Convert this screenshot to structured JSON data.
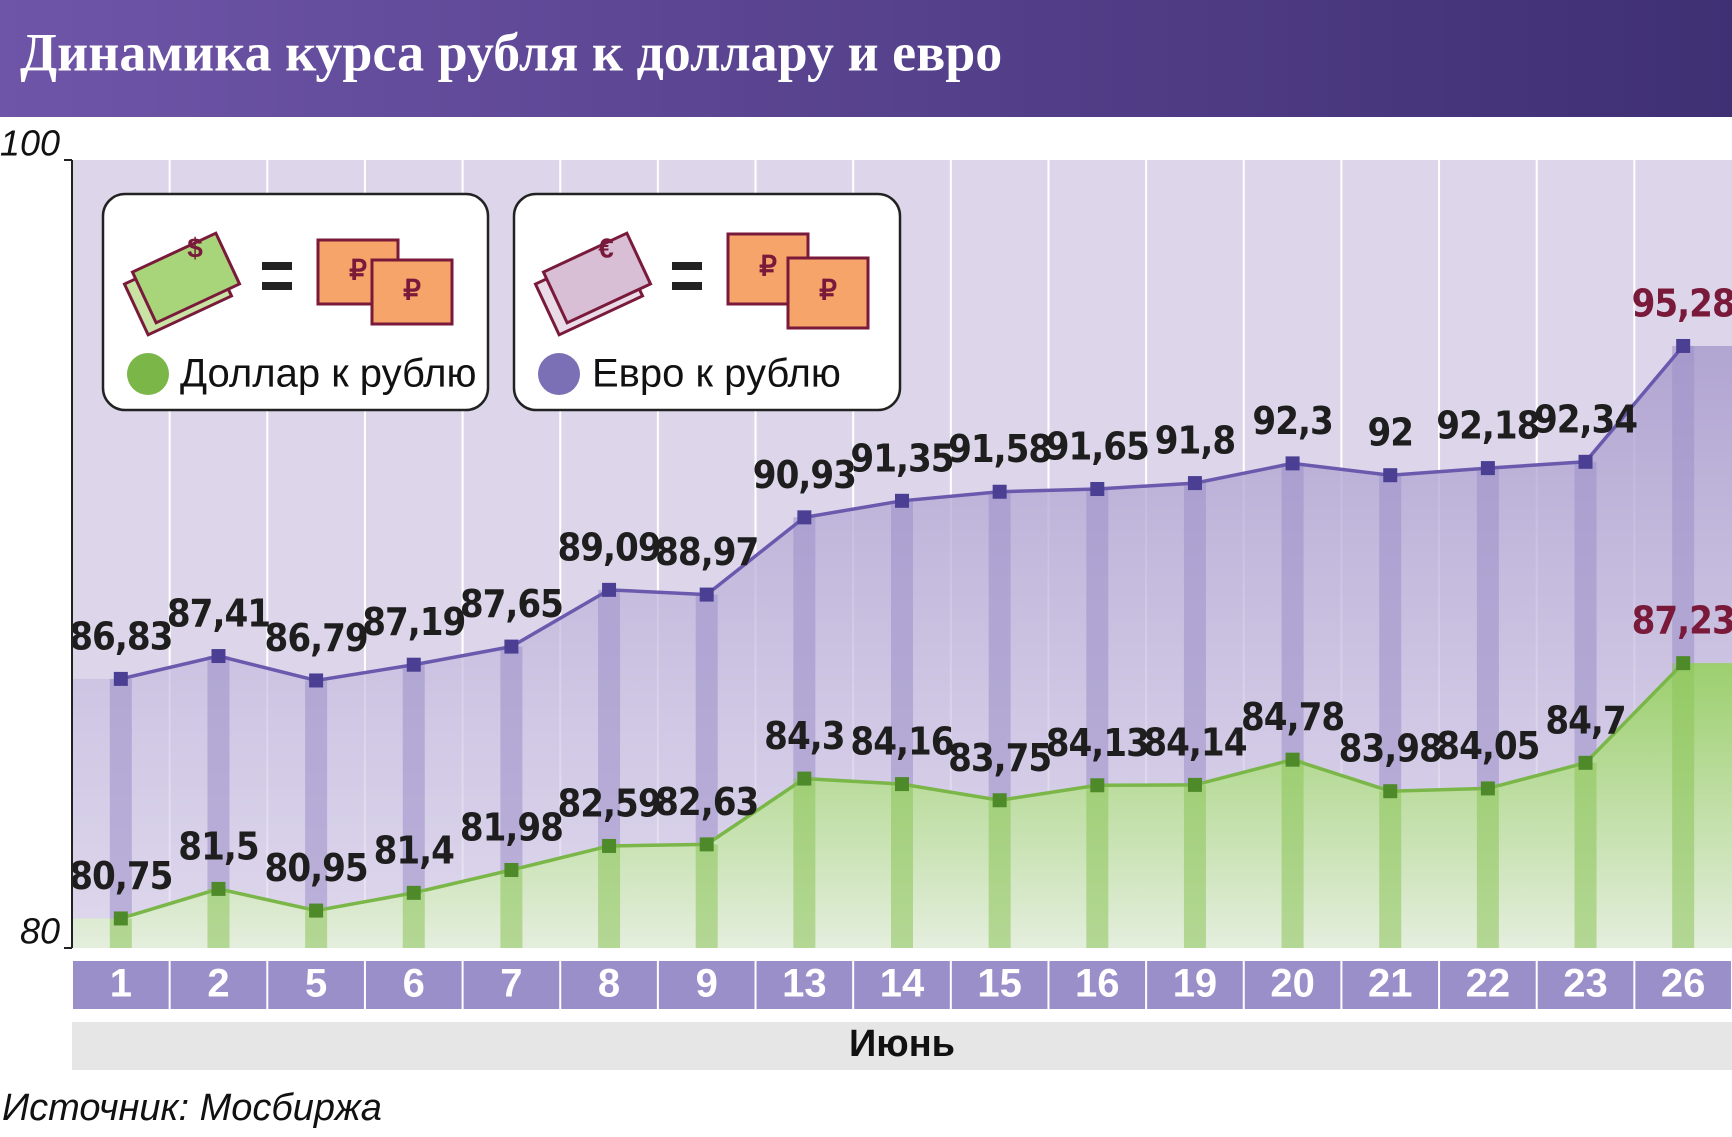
{
  "chart_data": {
    "type": "line",
    "title": "Динамика курса рубля к доллару и евро",
    "categories": [
      "1",
      "2",
      "5",
      "6",
      "7",
      "8",
      "9",
      "13",
      "14",
      "15",
      "16",
      "19",
      "20",
      "21",
      "22",
      "23",
      "26"
    ],
    "x_label": "Июнь",
    "ylim": [
      80,
      100
    ],
    "yticks": [
      80,
      100
    ],
    "source": "Источник: Мосбиржа",
    "series": [
      {
        "name": "Евро к рублю",
        "color": "#6a5aad",
        "values": [
          86.83,
          87.41,
          86.79,
          87.19,
          87.65,
          89.09,
          88.97,
          90.93,
          91.35,
          91.58,
          91.65,
          91.8,
          92.3,
          92,
          92.18,
          92.34,
          95.28
        ],
        "value_labels": [
          "86,83",
          "87,41",
          "86,79",
          "87,19",
          "87,65",
          "89,09",
          "88,97",
          "90,93",
          "91,35",
          "91,58",
          "91,65",
          "91,8",
          "92,3",
          "92",
          "92,18",
          "92,34",
          "95,28"
        ]
      },
      {
        "name": "Доллар к рублю",
        "color": "#7ab648",
        "values": [
          80.75,
          81.5,
          80.95,
          81.4,
          81.98,
          82.59,
          82.63,
          84.3,
          84.16,
          83.75,
          84.13,
          84.14,
          84.78,
          83.98,
          84.05,
          84.7,
          87.23
        ],
        "value_labels": [
          "80,75",
          "81,5",
          "80,95",
          "81,4",
          "81,98",
          "82,59",
          "82,63",
          "84,3",
          "84,16",
          "83,75",
          "84,13",
          "84,14",
          "84,78",
          "83,98",
          "84,05",
          "84,7",
          "87,23"
        ]
      }
    ]
  }
}
